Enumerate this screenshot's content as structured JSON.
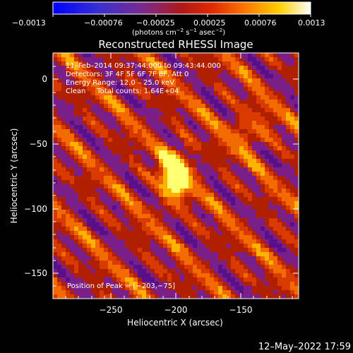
{
  "colorbar": {
    "tick_labels": [
      "−0.0013",
      "−0.00076",
      "−0.00025",
      "0.00025",
      "0.00076",
      "0.0013"
    ],
    "units_prefix": "(photons cm",
    "units_exp1": "−2",
    "units_mid1": " s",
    "units_exp2": "−1",
    "units_mid2": " asec",
    "units_exp3": "−2",
    "units_suffix": ")"
  },
  "title": "Reconstructed RHESSI Image",
  "info_lines": [
    "11–Feb–2014 09:37:44.000 to 09:43:44.000",
    "Detectors: 3F 4F 5F 6F 7F 8F, Att 0",
    "Energy Range: 12.0 – 25.0 keV",
    "Clean     Total counts: 1.64E+04"
  ],
  "peak_label": "Position of Peak = [−203,−75]",
  "x_axis": {
    "label": "Heliocentric X (arcsec)",
    "tick_labels": [
      "−250",
      "−200",
      "−150"
    ],
    "range": [
      -297,
      -107
    ]
  },
  "y_axis": {
    "label": "Heliocentric Y (arcsec)",
    "tick_labels": [
      "0",
      "−50",
      "−100",
      "−150"
    ],
    "range": [
      -170,
      20
    ]
  },
  "footer_date": "12–May–2022 17:59",
  "image": {
    "peak": [
      -203,
      -75
    ],
    "colormap": [
      "#5a0f8a",
      "#7a1f8a",
      "#b02000",
      "#d83a00",
      "#f36a00",
      "#ffb200",
      "#ffff70"
    ]
  }
}
